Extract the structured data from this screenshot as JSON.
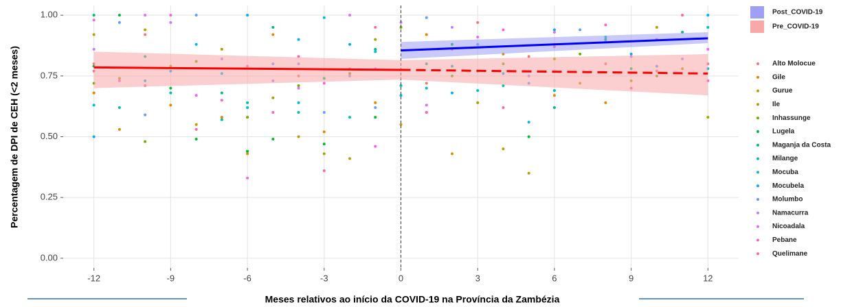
{
  "chart_data": {
    "type": "scatter",
    "y_label": "Percentagem de DPI de CEH (<2 meses)",
    "x_label": "Meses relativos ao início da COVID-19 na Província da Zambézia",
    "xlim": [
      -13.2,
      13.2
    ],
    "ylim": [
      -0.04,
      1.04
    ],
    "xticks": [
      -12,
      -9,
      -6,
      -3,
      0,
      3,
      6,
      9,
      12
    ],
    "yticks": [
      {
        "value": 0,
        "label": "0.00"
      },
      {
        "value": 0.25,
        "label": "0.25"
      },
      {
        "value": 0.5,
        "label": "0.50"
      },
      {
        "value": 0.75,
        "label": "0.75"
      },
      {
        "value": 1,
        "label": "1.00"
      }
    ],
    "grid": true,
    "vline": 0,
    "fits": [
      {
        "name": "Post_COVID-19",
        "color": "#0000ff",
        "fill": "#9f9ff5",
        "x": [
          0,
          12
        ],
        "values": [
          0.855,
          0.905
        ],
        "lower": [
          0.82,
          0.885
        ],
        "upper": [
          0.89,
          0.93
        ]
      },
      {
        "name": "Pre_COVID-19",
        "color": "#ff0000",
        "fill": "#f8a8a8",
        "x": [
          -12,
          0
        ],
        "values": [
          0.785,
          0.775
        ],
        "lower": [
          0.7,
          0.735
        ],
        "upper": [
          0.85,
          0.815
        ]
      },
      {
        "color": "#ff0000",
        "fill": "#f8a8a8",
        "dashed": true,
        "x": [
          0,
          12
        ],
        "values": [
          0.775,
          0.76
        ],
        "lower": [
          0.735,
          0.67
        ],
        "upper": [
          0.815,
          0.84
        ]
      }
    ],
    "series": [
      {
        "name": "Alto Molocue",
        "color": "#F8766D",
        "x": [
          -12,
          -10,
          -8,
          -6,
          -4,
          -2,
          1,
          3,
          5,
          8,
          10,
          12
        ],
        "values": [
          0.8,
          0.92,
          0.67,
          0.44,
          0.75,
          0.78,
          0.72,
          0.97,
          0.83,
          0.8,
          0.77,
          0.8
        ]
      },
      {
        "name": "Gile",
        "color": "#E58700",
        "x": [
          -12,
          -11,
          -9,
          -7,
          -5,
          -3,
          -1,
          1,
          4,
          6,
          8,
          11
        ],
        "values": [
          0.68,
          0.53,
          0.63,
          0.58,
          0.92,
          0.52,
          0.64,
          0.92,
          0.84,
          0.67,
          0.64,
          0.78
        ]
      },
      {
        "name": "Gurue",
        "color": "#C99800",
        "x": [
          -12,
          -10,
          -8,
          -6,
          -4,
          -2,
          0,
          2,
          4,
          5,
          7,
          10
        ],
        "values": [
          0.92,
          0.94,
          0.55,
          0.43,
          0.5,
          0.41,
          0.55,
          0.43,
          0.45,
          0.35,
          0.72,
          0.95
        ]
      },
      {
        "name": "Ile",
        "color": "#A3A500",
        "x": [
          -11,
          -9,
          -7,
          -5,
          -3,
          -1,
          1,
          3,
          6,
          9,
          12
        ],
        "values": [
          0.74,
          0.79,
          0.86,
          0.66,
          0.43,
          0.9,
          0.6,
          0.64,
          0.82,
          0.73,
          0.58
        ]
      },
      {
        "name": "Inhassunge",
        "color": "#6BB100",
        "x": [
          -12,
          -10,
          -8,
          -6,
          -4,
          -2,
          0,
          2,
          4,
          7,
          10
        ],
        "values": [
          0.72,
          0.48,
          0.81,
          0.58,
          0.71,
          0.76,
          0.95,
          0.75,
          0.8,
          0.84,
          0.75
        ]
      },
      {
        "name": "Lugela",
        "color": "#00BA38",
        "x": [
          -12,
          -11,
          -9,
          -8,
          -6,
          -5,
          -3,
          -1,
          2,
          5,
          8
        ],
        "values": [
          0.79,
          1.0,
          0.7,
          0.49,
          0.44,
          0.49,
          0.47,
          0.58,
          0.88,
          0.5,
          0.9
        ]
      },
      {
        "name": "Maganja da Costa",
        "color": "#00BF7D",
        "x": [
          -12,
          -10,
          -7,
          -5,
          -3,
          -1,
          1,
          3,
          6,
          9,
          11
        ],
        "values": [
          1.0,
          0.83,
          0.68,
          0.95,
          0.74,
          0.86,
          0.8,
          0.77,
          0.62,
          0.78,
          0.93
        ]
      },
      {
        "name": "Milange",
        "color": "#00C0AF",
        "x": [
          -11,
          -9,
          -7,
          -6,
          -4,
          -2,
          0,
          2,
          4,
          6,
          12
        ],
        "values": [
          0.62,
          0.68,
          0.57,
          0.64,
          0.6,
          0.58,
          0.71,
          0.79,
          0.71,
          0.69,
          0.95
        ]
      },
      {
        "name": "Mocuba",
        "color": "#00BCD8",
        "x": [
          -12,
          -10,
          -8,
          -6,
          -4,
          -3,
          -1,
          1,
          3,
          5,
          8,
          12
        ],
        "values": [
          0.63,
          0.73,
          0.88,
          0.62,
          0.64,
          0.99,
          0.85,
          0.7,
          0.69,
          0.56,
          0.91,
          0.78
        ]
      },
      {
        "name": "Mocubela",
        "color": "#00B0F6",
        "x": [
          -12,
          -9,
          -7,
          -6,
          -4,
          -2,
          0,
          2,
          4,
          6,
          9,
          12
        ],
        "values": [
          0.5,
          0.77,
          0.76,
          1.0,
          0.9,
          0.88,
          0.67,
          0.68,
          0.76,
          0.94,
          0.84,
          1.0
        ]
      },
      {
        "name": "Molumbo",
        "color": "#619CFF",
        "x": [
          -11,
          -10,
          -8,
          -5,
          -3,
          -1,
          1,
          3,
          5,
          7,
          10
        ],
        "values": [
          0.97,
          0.59,
          1.0,
          0.8,
          0.6,
          0.62,
          0.99,
          0.88,
          0.72,
          0.94,
          0.79
        ]
      },
      {
        "name": "Namacurra",
        "color": "#B983FF",
        "x": [
          -12,
          -9,
          -7,
          -5,
          -4,
          -2,
          0,
          2,
          5,
          8,
          11
        ],
        "values": [
          0.86,
          0.97,
          0.82,
          0.73,
          0.8,
          0.75,
          0.97,
          0.95,
          0.75,
          0.89,
          0.82
        ]
      },
      {
        "name": "Nicoadala",
        "color": "#E76BF3",
        "x": [
          -12,
          -10,
          -8,
          -6,
          -4,
          -2,
          -1,
          1,
          3,
          6,
          9,
          12
        ],
        "values": [
          0.98,
          1.0,
          0.67,
          0.33,
          0.7,
          1.0,
          0.78,
          0.63,
          0.91,
          0.93,
          0.83,
          0.86
        ]
      },
      {
        "name": "Pebane",
        "color": "#FD61D1",
        "x": [
          -11,
          -9,
          -7,
          -5,
          -3,
          -1,
          1,
          4,
          6,
          8,
          10,
          12
        ],
        "values": [
          0.73,
          1.0,
          0.65,
          0.6,
          0.72,
          0.46,
          0.6,
          0.94,
          0.88,
          0.96,
          0.9,
          0.73
        ]
      },
      {
        "name": "Quelimane",
        "color": "#FF67A4",
        "x": [
          -12,
          -10,
          -8,
          -6,
          -4,
          -3,
          -1,
          2,
          4,
          6,
          9,
          11
        ],
        "values": [
          0.77,
          0.71,
          0.53,
          0.79,
          0.83,
          0.36,
          0.95,
          0.86,
          0.62,
          0.87,
          0.7,
          1.0
        ]
      }
    ]
  }
}
